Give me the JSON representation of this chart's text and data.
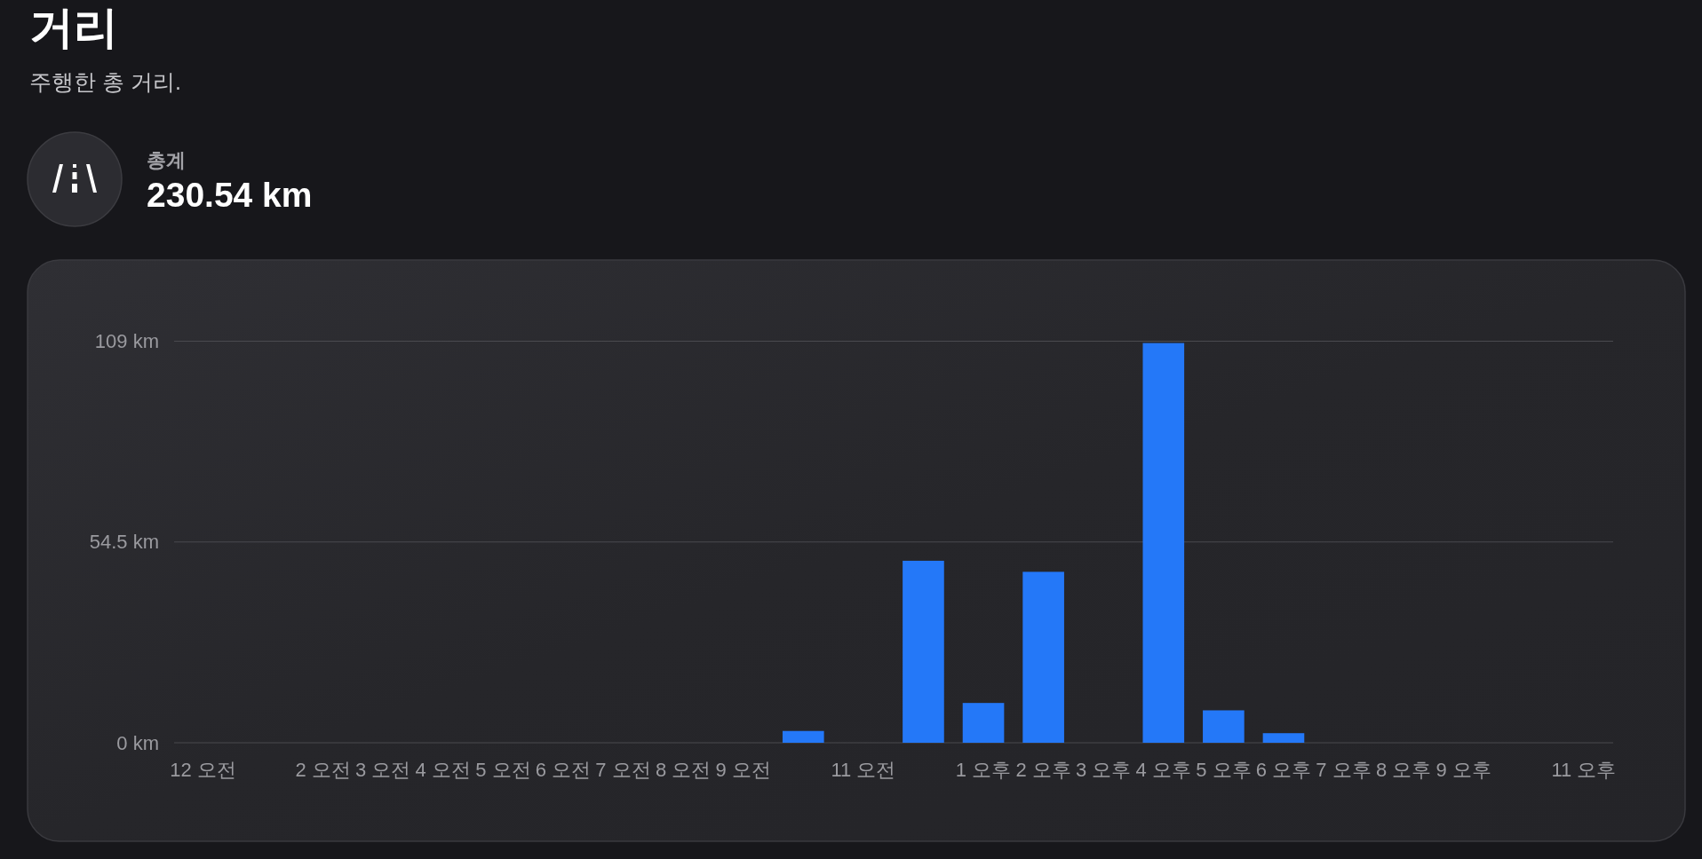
{
  "chart_data": {
    "type": "bar",
    "title": "거리",
    "subtitle": "주행한 총 거리.",
    "annotations": [
      "총계",
      "230.54 km"
    ],
    "categories": [
      "12 오전",
      null,
      "2 오전",
      "3 오전",
      "4 오전",
      "5 오전",
      "6 오전",
      "7 오전",
      "8 오전",
      "9 오전",
      null,
      "11 오전",
      null,
      "1 오후",
      "2 오후",
      "3 오후",
      "4 오후",
      "5 오후",
      "6 오후",
      "7 오후",
      "8 오후",
      "9 오후",
      null,
      "11 오후"
    ],
    "values": [
      0,
      0,
      0,
      0,
      0,
      0,
      0,
      0,
      0,
      0,
      3.2,
      0,
      49.4,
      10.8,
      46.4,
      0,
      108.5,
      8.8,
      2.6,
      0,
      0,
      0,
      0,
      0
    ],
    "color": "#2478f8",
    "ylim": [
      0,
      109
    ],
    "yticks": [
      {
        "value": 0,
        "label": "0 km"
      },
      {
        "value": 54.5,
        "label": "54.5 km"
      },
      {
        "value": 109,
        "label": "109 km"
      }
    ],
    "grid": "y"
  }
}
